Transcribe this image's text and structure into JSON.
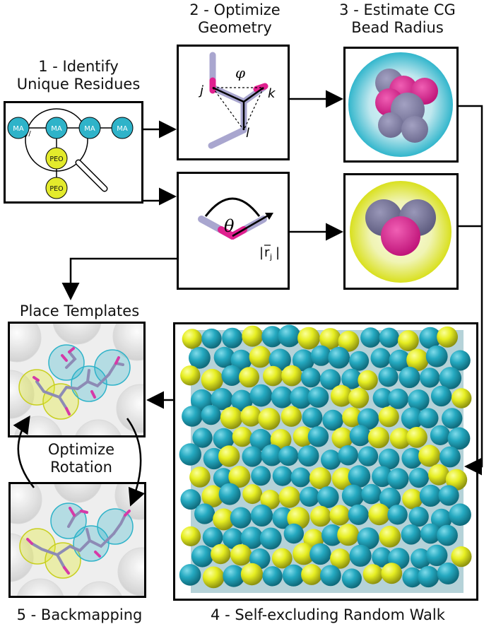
{
  "steps": {
    "step1": {
      "line1": "1 - Identify",
      "line2": "Unique Residues"
    },
    "step2": {
      "line1": "2 - Optimize",
      "line2": "Geometry"
    },
    "step3": {
      "line1": "3 - Estimate CG",
      "line2": "Bead Radius"
    },
    "place": "Place Templates",
    "optimize": {
      "line1": "Optimize",
      "line2": "Rotation"
    },
    "step5": "5 - Backmapping",
    "step4": "4 - Self-excluding Random Walk"
  },
  "residues": {
    "ma": "MA",
    "peo": "PEO"
  },
  "geometry": {
    "dihedral": {
      "phi": "φ",
      "j": "j",
      "k": "k",
      "l": "l"
    },
    "angle": {
      "theta": "θ",
      "rj_bar": "|",
      "rj": "r",
      "rj_sub": "j",
      "rj_end": "|"
    }
  },
  "colors": {
    "cyan": "#2fb3c9",
    "yellow": "#e3ea2c",
    "magenta": "#e0208f",
    "lavender": "#a9a6cf",
    "black": "#000000"
  }
}
